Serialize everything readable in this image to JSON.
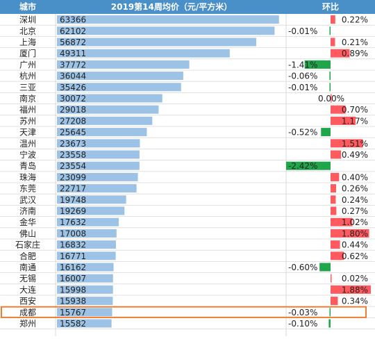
{
  "colors": {
    "header_bg": "#4a90c8",
    "header_text": "#ffffff",
    "bar": "#9cc3e6",
    "pos": "#ff5a5f",
    "neg": "#1fa64a",
    "grid": "#d9d9d9",
    "highlight": "#ed7d31"
  },
  "highlight_city": "成都",
  "chart_data": {
    "type": "table",
    "headers": {
      "city": "城市",
      "price": "2019第14周均价（元/平方米）",
      "change": "环比"
    },
    "price_range": [
      0,
      65000
    ],
    "change_range": [
      -2.42,
      1.88
    ],
    "rows": [
      {
        "city": "深圳",
        "price": 63366,
        "change": 0.22,
        "change_label": "0.22%"
      },
      {
        "city": "北京",
        "price": 62102,
        "change": -0.01,
        "change_label": "-0.01%"
      },
      {
        "city": "上海",
        "price": 56872,
        "change": 0.21,
        "change_label": "0.21%"
      },
      {
        "city": "厦门",
        "price": 49311,
        "change": 0.89,
        "change_label": "0.89%"
      },
      {
        "city": "广州",
        "price": 37772,
        "change": -1.41,
        "change_label": "-1.41%"
      },
      {
        "city": "杭州",
        "price": 36044,
        "change": -0.06,
        "change_label": "-0.06%"
      },
      {
        "city": "三亚",
        "price": 35426,
        "change": -0.01,
        "change_label": "-0.01%"
      },
      {
        "city": "南京",
        "price": 30072,
        "change": 0.0,
        "change_label": "0.00%"
      },
      {
        "city": "福州",
        "price": 29018,
        "change": 0.7,
        "change_label": "0.70%"
      },
      {
        "city": "苏州",
        "price": 27208,
        "change": 1.17,
        "change_label": "1.17%"
      },
      {
        "city": "天津",
        "price": 25645,
        "change": -0.52,
        "change_label": "-0.52%"
      },
      {
        "city": "温州",
        "price": 23673,
        "change": 1.51,
        "change_label": "1.51%"
      },
      {
        "city": "宁波",
        "price": 23558,
        "change": 0.49,
        "change_label": "0.49%"
      },
      {
        "city": "青岛",
        "price": 23554,
        "change": -2.42,
        "change_label": "-2.42%"
      },
      {
        "city": "珠海",
        "price": 23099,
        "change": 0.4,
        "change_label": "0.40%"
      },
      {
        "city": "东莞",
        "price": 22717,
        "change": 0.26,
        "change_label": "0.26%"
      },
      {
        "city": "武汉",
        "price": 19748,
        "change": 0.24,
        "change_label": "0.24%"
      },
      {
        "city": "济南",
        "price": 19269,
        "change": 0.27,
        "change_label": "0.27%"
      },
      {
        "city": "金华",
        "price": 17632,
        "change": 1.02,
        "change_label": "1.02%"
      },
      {
        "city": "佛山",
        "price": 17008,
        "change": 1.8,
        "change_label": "1.80%"
      },
      {
        "city": "石家庄",
        "price": 16832,
        "change": 0.44,
        "change_label": "0.44%"
      },
      {
        "city": "合肥",
        "price": 16771,
        "change": 0.62,
        "change_label": "0.62%"
      },
      {
        "city": "南通",
        "price": 16162,
        "change": -0.6,
        "change_label": "-0.60%"
      },
      {
        "city": "无锡",
        "price": 16007,
        "change": 0.02,
        "change_label": "0.02%"
      },
      {
        "city": "大连",
        "price": 15998,
        "change": 1.88,
        "change_label": "1.88%"
      },
      {
        "city": "西安",
        "price": 15938,
        "change": 0.34,
        "change_label": "0.34%"
      },
      {
        "city": "成都",
        "price": 15767,
        "change": -0.03,
        "change_label": "-0.03%"
      },
      {
        "city": "郑州",
        "price": 15582,
        "change": -0.1,
        "change_label": "-0.10%"
      }
    ]
  }
}
